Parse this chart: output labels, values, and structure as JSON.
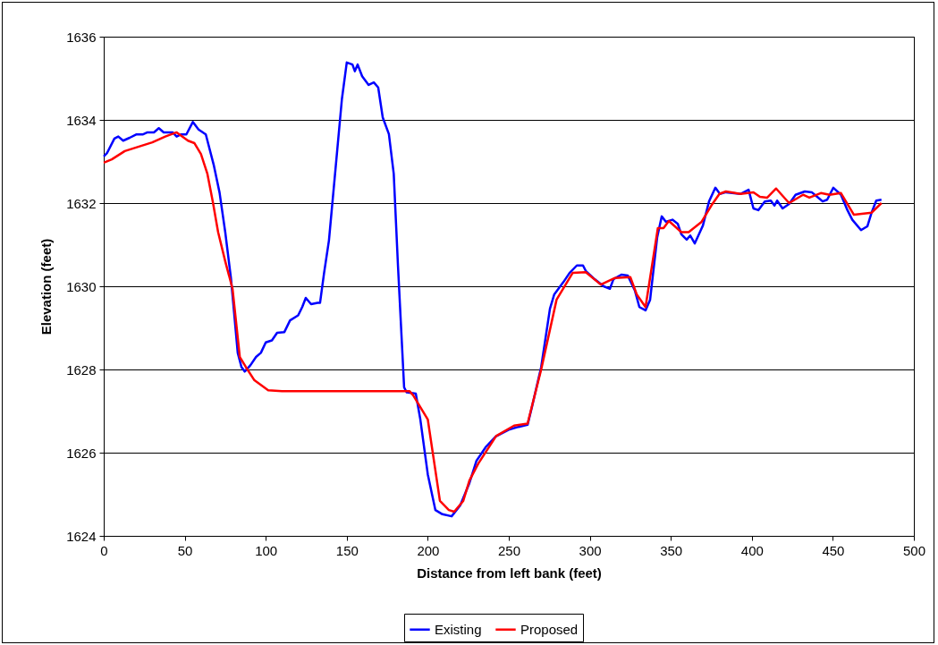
{
  "chart_data": {
    "type": "line",
    "xlabel": "Distance from left bank (feet)",
    "ylabel": "Elevation (feet)",
    "xlim": [
      0,
      500
    ],
    "xticks": [
      0,
      50,
      100,
      150,
      200,
      250,
      300,
      350,
      400,
      450,
      500
    ],
    "ylim": [
      1624,
      1636
    ],
    "yticks": [
      1624,
      1626,
      1628,
      1630,
      1632,
      1634,
      1636
    ],
    "grid": "y",
    "legend": "bottom",
    "line_style": "solid",
    "marker": "none",
    "series": [
      {
        "name": "Existing",
        "color": "#0000ff",
        "x": [
          0,
          2,
          6.6,
          9,
          12,
          16,
          20,
          24,
          27,
          31,
          34,
          37,
          42.5,
          45,
          47.5,
          51,
          55,
          58.5,
          63,
          68,
          71.5,
          75,
          78.5,
          80.5,
          82.7,
          85,
          87,
          90.5,
          94,
          97,
          100,
          103.8,
          107,
          111.5,
          115,
          120,
          122.5,
          124.7,
          128,
          132,
          133.5,
          136,
          139,
          143,
          147,
          150,
          153.5,
          155,
          156.7,
          159.5,
          163.5,
          166.7,
          169.4,
          172.2,
          176,
          179,
          181.6,
          183.8,
          185.4,
          187,
          192.6,
          195.4,
          200,
          204.7,
          209,
          214.7,
          220,
          225.7,
          230,
          235.7,
          242,
          250.5,
          256,
          261.6,
          264.3,
          270,
          275.4,
          278,
          283.7,
          287.5,
          292,
          295.8,
          297.5,
          303,
          308.5,
          312.4,
          314.6,
          319.5,
          323.4,
          327.8,
          330.6,
          334.4,
          337.2,
          341.6,
          344.4,
          347,
          351,
          354.3,
          356.5,
          359.8,
          362,
          364.8,
          369.8,
          373.6,
          377.5,
          380.3,
          384,
          393,
          398,
          401,
          404,
          408,
          411.7,
          414,
          415.6,
          419,
          423,
          427,
          432.7,
          437,
          441,
          443.7,
          446.5,
          450.3,
          455,
          459,
          462,
          467.4,
          471.3,
          474,
          476.8,
          480
        ],
        "values": [
          1633.12,
          1633.2,
          1633.55,
          1633.6,
          1633.5,
          1633.57,
          1633.65,
          1633.65,
          1633.7,
          1633.7,
          1633.8,
          1633.7,
          1633.7,
          1633.6,
          1633.65,
          1633.65,
          1633.95,
          1633.77,
          1633.65,
          1632.9,
          1632.25,
          1631.3,
          1630.2,
          1629.35,
          1628.4,
          1628.06,
          1627.95,
          1628.1,
          1628.3,
          1628.4,
          1628.65,
          1628.7,
          1628.88,
          1628.9,
          1629.18,
          1629.3,
          1629.5,
          1629.72,
          1629.57,
          1629.6,
          1629.6,
          1630.32,
          1631.1,
          1632.8,
          1634.5,
          1635.38,
          1635.33,
          1635.17,
          1635.33,
          1635.05,
          1634.84,
          1634.9,
          1634.78,
          1634.06,
          1633.66,
          1632.7,
          1630.5,
          1628.8,
          1627.57,
          1627.45,
          1627.42,
          1626.8,
          1625.48,
          1624.62,
          1624.52,
          1624.47,
          1624.73,
          1625.27,
          1625.8,
          1626.13,
          1626.39,
          1626.56,
          1626.62,
          1626.67,
          1627.1,
          1628.06,
          1629.46,
          1629.8,
          1630.1,
          1630.32,
          1630.5,
          1630.5,
          1630.37,
          1630.17,
          1630,
          1629.94,
          1630.17,
          1630.28,
          1630.26,
          1629.9,
          1629.5,
          1629.42,
          1629.67,
          1631.18,
          1631.68,
          1631.55,
          1631.6,
          1631.5,
          1631.25,
          1631.12,
          1631.22,
          1631.03,
          1631.46,
          1632.04,
          1632.37,
          1632.22,
          1632.26,
          1632.22,
          1632.32,
          1631.87,
          1631.83,
          1632.04,
          1632.06,
          1631.94,
          1632.06,
          1631.87,
          1631.98,
          1632.2,
          1632.28,
          1632.26,
          1632.13,
          1632.04,
          1632.08,
          1632.37,
          1632.2,
          1631.83,
          1631.6,
          1631.35,
          1631.44,
          1631.78,
          1632.06,
          1632.08
        ]
      },
      {
        "name": "Proposed",
        "color": "#ff0000",
        "x": [
          0,
          5,
          13,
          30,
          38,
          45,
          52,
          56,
          60,
          64,
          67.3,
          70.6,
          75,
          79.5,
          84,
          87.7,
          93,
          101.5,
          110,
          184,
          188.7,
          191,
          200,
          207.5,
          213,
          216.3,
          221.9,
          225.7,
          231.2,
          242.2,
          253.3,
          261.6,
          270,
          279.5,
          289.4,
          297.5,
          306.8,
          315.6,
          325,
          329,
          334.4,
          342,
          345.5,
          348.8,
          356.5,
          361,
          369,
          375,
          380,
          384,
          393,
          401,
          405,
          409.5,
          415,
          423,
          431.6,
          435.5,
          442.6,
          448,
          455,
          463,
          474,
          480
        ],
        "values": [
          1632.97,
          1633.05,
          1633.25,
          1633.46,
          1633.6,
          1633.7,
          1633.5,
          1633.44,
          1633.18,
          1632.7,
          1632.04,
          1631.3,
          1630.6,
          1629.94,
          1628.3,
          1628.06,
          1627.74,
          1627.5,
          1627.48,
          1627.48,
          1627.48,
          1627.38,
          1626.8,
          1624.84,
          1624.62,
          1624.58,
          1624.84,
          1625.33,
          1625.74,
          1626.4,
          1626.65,
          1626.7,
          1628,
          1629.68,
          1630.32,
          1630.34,
          1630.04,
          1630.2,
          1630.22,
          1629.8,
          1629.5,
          1631.4,
          1631.4,
          1631.57,
          1631.3,
          1631.3,
          1631.55,
          1631.94,
          1632.22,
          1632.28,
          1632.22,
          1632.26,
          1632.15,
          1632.13,
          1632.35,
          1632,
          1632.2,
          1632.13,
          1632.24,
          1632.2,
          1632.24,
          1631.72,
          1631.77,
          1632
        ]
      }
    ]
  }
}
